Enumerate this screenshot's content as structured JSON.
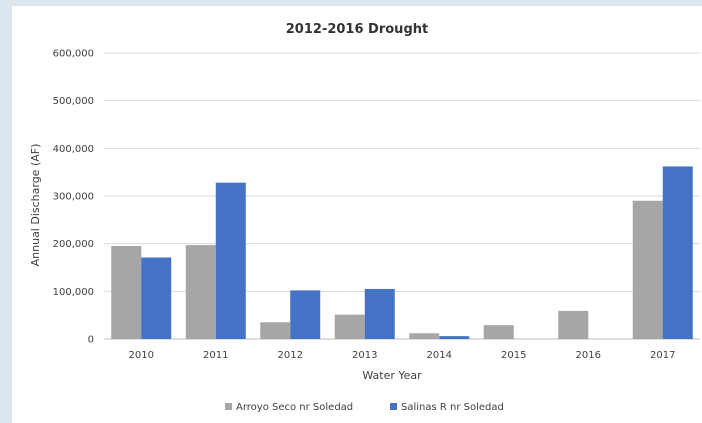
{
  "chart_data": {
    "type": "bar",
    "title": "2012-2016 Drought",
    "xlabel": "Water Year",
    "ylabel": "Annual Discharge (AF)",
    "categories": [
      "2010",
      "2011",
      "2012",
      "2013",
      "2014",
      "2015",
      "2016",
      "2017"
    ],
    "series": [
      {
        "name": "Arroyo Seco nr Soledad",
        "color": "#a6a6a6",
        "values": [
          195000,
          197000,
          35000,
          51000,
          12000,
          29000,
          59000,
          290000
        ]
      },
      {
        "name": "Salinas R nr Soledad",
        "color": "#4472c4",
        "values": [
          171000,
          328000,
          102000,
          105000,
          6000,
          0,
          0,
          362000
        ]
      }
    ],
    "ylim": [
      0,
      600000
    ],
    "yticks": [
      "0",
      "100,000",
      "200,000",
      "300,000",
      "400,000",
      "500,000",
      "600,000"
    ],
    "grid": true,
    "legend_position": "bottom"
  }
}
